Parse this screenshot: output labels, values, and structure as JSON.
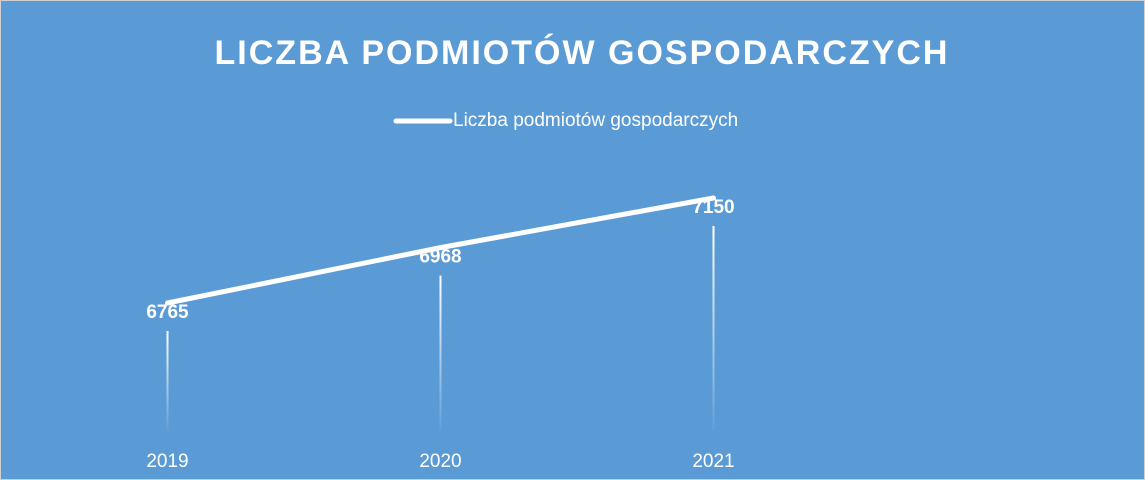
{
  "chart_data": {
    "type": "line",
    "title": "LICZBA PODMIOTÓW GOSPODARCZYCH",
    "categories": [
      "2019",
      "2020",
      "2021"
    ],
    "series": [
      {
        "name": "Liczba podmiotów gospodarczych",
        "color": "#ffffff",
        "values": [
          6765,
          6968,
          7150
        ]
      }
    ],
    "legend": "top"
  }
}
